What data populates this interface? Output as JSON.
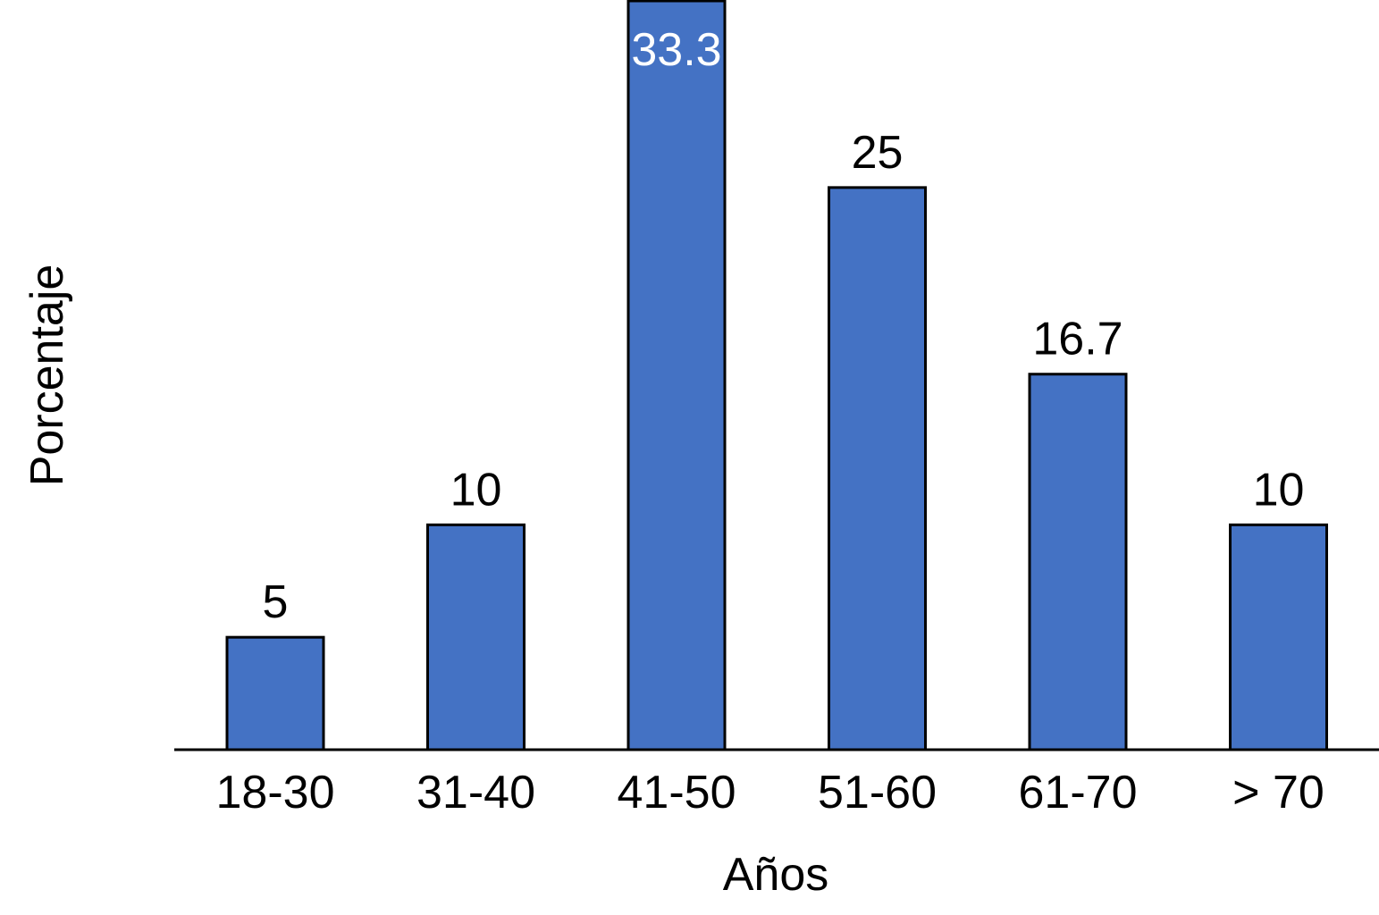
{
  "chart_data": {
    "type": "bar",
    "categories": [
      "18-30",
      "31-40",
      "41-50",
      "51-60",
      "61-70",
      "> 70"
    ],
    "values": [
      5,
      10,
      33.3,
      25,
      16.7,
      10
    ],
    "data_labels": [
      "5",
      "10",
      "33.3",
      "25",
      "16.7",
      "10"
    ],
    "xlabel": "Años",
    "ylabel": "Porcentaje",
    "ylim": [
      0,
      33.3
    ],
    "grid": false,
    "colors": {
      "bar_fill": "#4472C4",
      "bar_stroke": "#000000",
      "axis": "#000000",
      "label_inside": "#ffffff",
      "label_outside": "#000000"
    }
  }
}
